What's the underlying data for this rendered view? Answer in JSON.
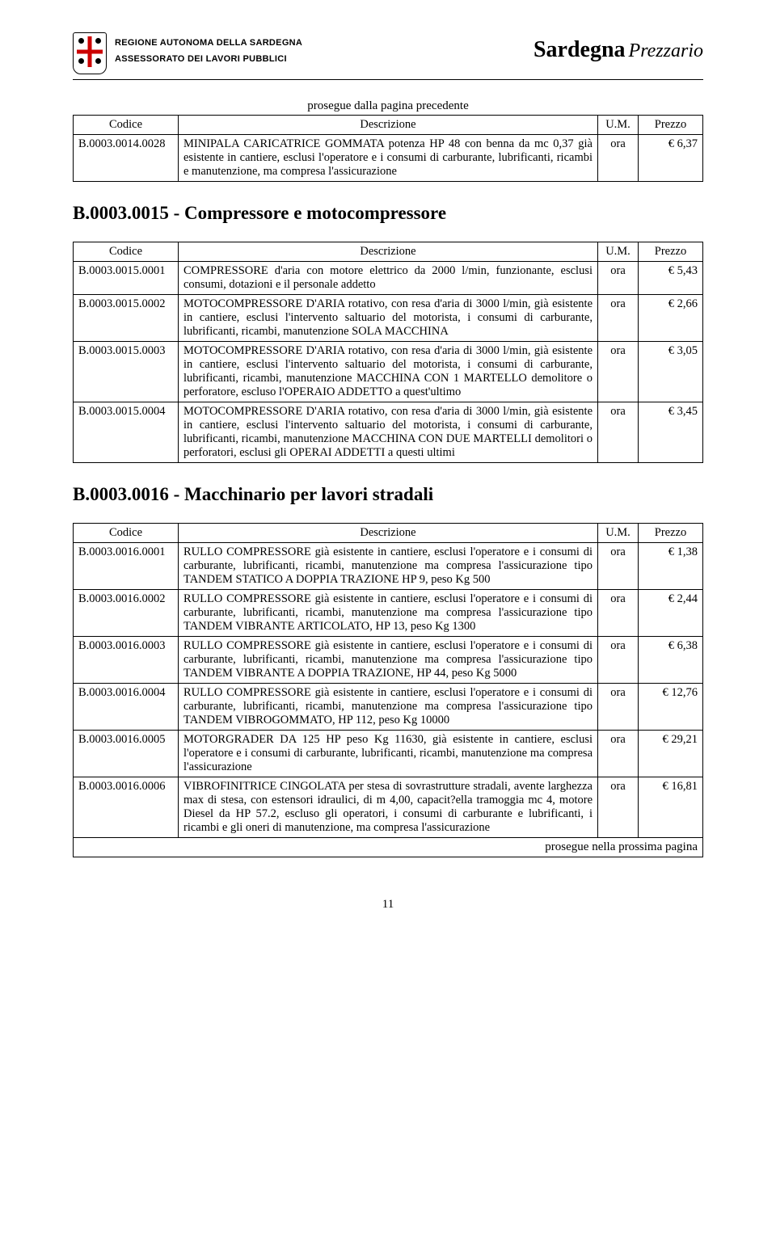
{
  "header": {
    "line1": "REGIONE AUTONOMA DELLA SARDEGNA",
    "line2": "ASSESSORATO DEI LAVORI PUBBLICI",
    "brand": "Sardegna",
    "brand_sub": "Prezzario"
  },
  "continuation_label": "prosegue dalla pagina precedente",
  "continues_label": "prosegue nella prossima pagina",
  "column_headers": {
    "code": "Codice",
    "desc": "Descrizione",
    "um": "U.M.",
    "price": "Prezzo"
  },
  "table1": {
    "rows": [
      {
        "code": "B.0003.0014.0028",
        "desc": "MINIPALA CARICATRICE GOMMATA potenza HP 48 con benna da mc 0,37 già esistente in cantiere, esclusi l'operatore e i consumi di carburante, lubrificanti, ricambi e manutenzione, ma compresa l'assicurazione",
        "um": "ora",
        "price": "€ 6,37"
      }
    ]
  },
  "section15": {
    "title": "B.0003.0015 - Compressore e motocompressore",
    "rows": [
      {
        "code": "B.0003.0015.0001",
        "desc": "COMPRESSORE d'aria con motore elettrico da 2000 l/min, funzionante, esclusi consumi, dotazioni e il personale addetto",
        "um": "ora",
        "price": "€ 5,43"
      },
      {
        "code": "B.0003.0015.0002",
        "desc": "MOTOCOMPRESSORE D'ARIA rotativo, con resa d'aria di 3000 l/min, già esistente in cantiere, esclusi l'intervento saltuario del motorista, i consumi di carburante, lubrificanti, ricambi, manutenzione SOLA MACCHINA",
        "um": "ora",
        "price": "€ 2,66"
      },
      {
        "code": "B.0003.0015.0003",
        "desc": "MOTOCOMPRESSORE D'ARIA rotativo, con resa d'aria di 3000 l/min, già esistente in cantiere, esclusi l'intervento saltuario del motorista, i consumi di carburante, lubrificanti, ricambi, manutenzione MACCHINA CON 1 MARTELLO demolitore o perforatore, escluso l'OPERAIO ADDETTO a quest'ultimo",
        "um": "ora",
        "price": "€ 3,05"
      },
      {
        "code": "B.0003.0015.0004",
        "desc": "MOTOCOMPRESSORE D'ARIA rotativo, con resa d'aria di 3000 l/min, già esistente in cantiere, esclusi l'intervento saltuario del motorista, i consumi di carburante, lubrificanti, ricambi, manutenzione MACCHINA CON DUE MARTELLI demolitori o perforatori, esclusi gli OPERAI ADDETTI a questi ultimi",
        "um": "ora",
        "price": "€ 3,45"
      }
    ]
  },
  "section16": {
    "title": "B.0003.0016 - Macchinario per lavori stradali",
    "rows": [
      {
        "code": "B.0003.0016.0001",
        "desc": "RULLO COMPRESSORE già esistente in cantiere, esclusi l'operatore e i consumi di carburante, lubrificanti, ricambi, manutenzione ma compresa l'assicurazione tipo TANDEM STATICO A DOPPIA TRAZIONE HP 9, peso Kg 500",
        "um": "ora",
        "price": "€ 1,38"
      },
      {
        "code": "B.0003.0016.0002",
        "desc": "RULLO COMPRESSORE già esistente in cantiere, esclusi l'operatore e i consumi di carburante, lubrificanti, ricambi, manutenzione ma compresa l'assicurazione tipo TANDEM VIBRANTE ARTICOLATO, HP 13, peso Kg 1300",
        "um": "ora",
        "price": "€ 2,44"
      },
      {
        "code": "B.0003.0016.0003",
        "desc": "RULLO COMPRESSORE già esistente in cantiere, esclusi l'operatore e i consumi di carburante, lubrificanti, ricambi, manutenzione ma compresa l'assicurazione tipo TANDEM VIBRANTE A DOPPIA TRAZIONE, HP 44, peso Kg 5000",
        "um": "ora",
        "price": "€ 6,38"
      },
      {
        "code": "B.0003.0016.0004",
        "desc": "RULLO COMPRESSORE già esistente in cantiere, esclusi l'operatore e i consumi di carburante, lubrificanti, ricambi, manutenzione ma compresa l'assicurazione tipo TANDEM VIBROGOMMATO, HP 112, peso Kg 10000",
        "um": "ora",
        "price": "€ 12,76"
      },
      {
        "code": "B.0003.0016.0005",
        "desc": "MOTORGRADER DA 125 HP peso Kg 11630, già esistente in cantiere, esclusi l'operatore e i consumi di carburante, lubrificanti, ricambi, manutenzione ma compresa l'assicurazione",
        "um": "ora",
        "price": "€ 29,21"
      },
      {
        "code": "B.0003.0016.0006",
        "desc": "VIBROFINITRICE CINGOLATA per stesa di sovrastrutture stradali, avente larghezza max di stesa, con estensori idraulici, di m 4,00, capacit?ella tramoggia mc 4, motore Diesel da HP 57.2, escluso gli operatori, i consumi di carburante e lubrificanti, i ricambi e gli oneri di manutenzione, ma compresa l'assicurazione",
        "um": "ora",
        "price": "€ 16,81"
      }
    ]
  },
  "page_number": "11"
}
